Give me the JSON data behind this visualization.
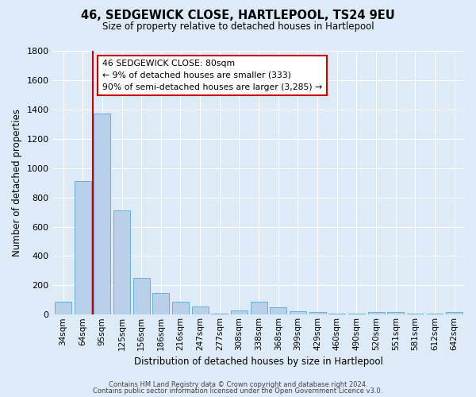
{
  "title": "46, SEDGEWICK CLOSE, HARTLEPOOL, TS24 9EU",
  "subtitle": "Size of property relative to detached houses in Hartlepool",
  "xlabel": "Distribution of detached houses by size in Hartlepool",
  "ylabel": "Number of detached properties",
  "categories": [
    "34sqm",
    "64sqm",
    "95sqm",
    "125sqm",
    "156sqm",
    "186sqm",
    "216sqm",
    "247sqm",
    "277sqm",
    "308sqm",
    "338sqm",
    "368sqm",
    "399sqm",
    "429sqm",
    "460sqm",
    "490sqm",
    "520sqm",
    "551sqm",
    "581sqm",
    "612sqm",
    "642sqm"
  ],
  "values": [
    90,
    910,
    1370,
    710,
    248,
    148,
    90,
    55,
    5,
    30,
    90,
    50,
    25,
    20,
    5,
    5,
    15,
    20,
    5,
    5,
    15
  ],
  "bar_color": "#b8d0e8",
  "bar_edge_color": "#6aaed6",
  "background_color": "#ddeaf7",
  "grid_color": "#ffffff",
  "vline_color": "#cc0000",
  "vline_x": 1.5,
  "annotation_line1": "46 SEDGEWICK CLOSE: 80sqm",
  "annotation_line2": "← 9% of detached houses are smaller (333)",
  "annotation_line3": "90% of semi-detached houses are larger (3,285) →",
  "annotation_box_color": "#ffffff",
  "annotation_box_edge": "#cc0000",
  "ylim": [
    0,
    1800
  ],
  "yticks": [
    0,
    200,
    400,
    600,
    800,
    1000,
    1200,
    1400,
    1600,
    1800
  ],
  "footer1": "Contains HM Land Registry data © Crown copyright and database right 2024.",
  "footer2": "Contains public sector information licensed under the Open Government Licence v3.0."
}
